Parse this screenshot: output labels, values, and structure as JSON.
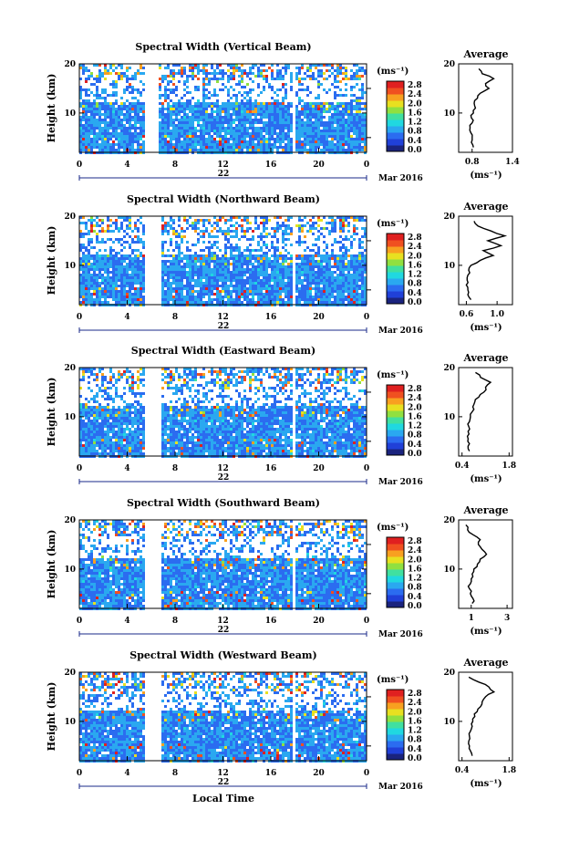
{
  "figure": {
    "month_label": "Mar 2016",
    "day_label": "22",
    "local_time_label": "Local Time"
  },
  "colorbar": {
    "unit": "(ms⁻¹)",
    "ticks": [
      "0.0",
      "0.4",
      "0.8",
      "1.2",
      "1.6",
      "2.0",
      "2.4",
      "2.8"
    ],
    "colors": [
      "#1a237e",
      "#2040d8",
      "#2b6cf0",
      "#2aa8f0",
      "#20d8e0",
      "#40e0a0",
      "#90e040",
      "#e8e020",
      "#f8a020",
      "#f05020",
      "#e02020"
    ]
  },
  "chart_data": [
    {
      "type": "heatmap",
      "title": "Spectral Width (Vertical Beam)",
      "xlabel": "",
      "ylabel": "Height (km)",
      "xlim": [
        0,
        24
      ],
      "ylim": [
        2,
        20
      ],
      "x_ticks": [
        "0",
        "4",
        "8",
        "12",
        "16",
        "20",
        "0"
      ],
      "y_ticks": [
        "10",
        "20"
      ],
      "zlim": [
        0.0,
        3.0
      ],
      "gaps": [
        [
          5.4,
          5.9
        ],
        [
          5.9,
          6.6
        ],
        [
          17.6,
          18.0
        ]
      ],
      "average": {
        "title": "Average",
        "xlabel": "(ms⁻¹)",
        "xlim": [
          0.6,
          1.4
        ],
        "x_ticks": [
          "0.8",
          "1.4"
        ],
        "y_ticks": [
          "10",
          "20"
        ],
        "height": [
          3,
          4,
          5,
          6,
          7,
          8,
          9,
          10,
          11,
          12,
          13,
          14,
          15,
          16,
          17,
          18,
          19
        ],
        "value": [
          0.82,
          0.79,
          0.8,
          0.78,
          0.77,
          0.8,
          0.79,
          0.82,
          0.85,
          0.83,
          0.88,
          0.92,
          1.05,
          1.0,
          1.12,
          0.95,
          0.9
        ]
      }
    },
    {
      "type": "heatmap",
      "title": "Spectral Width (Northward Beam)",
      "xlabel": "",
      "ylabel": "Height (km)",
      "xlim": [
        0,
        24
      ],
      "ylim": [
        2,
        20
      ],
      "x_ticks": [
        "0",
        "4",
        "8",
        "12",
        "16",
        "20",
        "0"
      ],
      "y_ticks": [
        "10",
        "20"
      ],
      "zlim": [
        0.0,
        3.0
      ],
      "gaps": [
        [
          5.4,
          6.8
        ],
        [
          17.6,
          18.0
        ]
      ],
      "average": {
        "title": "Average",
        "xlabel": "(ms⁻¹)",
        "xlim": [
          0.5,
          1.2
        ],
        "x_ticks": [
          "0.6",
          "1.0"
        ],
        "y_ticks": [
          "10",
          "20"
        ],
        "height": [
          3,
          4,
          5,
          6,
          7,
          8,
          9,
          10,
          11,
          12,
          13,
          14,
          15,
          16,
          17,
          18,
          19
        ],
        "value": [
          0.66,
          0.62,
          0.62,
          0.6,
          0.61,
          0.62,
          0.63,
          0.66,
          0.78,
          0.95,
          0.82,
          1.05,
          0.88,
          1.1,
          0.92,
          0.75,
          0.7
        ]
      }
    },
    {
      "type": "heatmap",
      "title": "Spectral Width (Eastward Beam)",
      "xlabel": "",
      "ylabel": "Height (km)",
      "xlim": [
        0,
        24
      ],
      "ylim": [
        2,
        20
      ],
      "x_ticks": [
        "0",
        "4",
        "8",
        "12",
        "16",
        "20",
        "0"
      ],
      "y_ticks": [
        "10",
        "20"
      ],
      "zlim": [
        0.0,
        3.0
      ],
      "gaps": [
        [
          5.4,
          6.8
        ],
        [
          17.6,
          18.0
        ]
      ],
      "average": {
        "title": "Average",
        "xlabel": "(ms⁻¹)",
        "xlim": [
          0.3,
          1.9
        ],
        "x_ticks": [
          "0.4",
          "1.8"
        ],
        "y_ticks": [
          "10",
          "20"
        ],
        "height": [
          3,
          4,
          5,
          6,
          7,
          8,
          9,
          10,
          11,
          12,
          13,
          14,
          15,
          16,
          17,
          18,
          19
        ],
        "value": [
          0.62,
          0.58,
          0.57,
          0.56,
          0.58,
          0.6,
          0.62,
          0.65,
          0.7,
          0.72,
          0.78,
          0.9,
          1.05,
          1.1,
          1.25,
          0.95,
          0.8
        ]
      }
    },
    {
      "type": "heatmap",
      "title": "Spectral Width (Southward Beam)",
      "xlabel": "",
      "ylabel": "Height (km)",
      "xlim": [
        0,
        24
      ],
      "ylim": [
        2,
        20
      ],
      "x_ticks": [
        "0",
        "4",
        "8",
        "12",
        "16",
        "20",
        "0"
      ],
      "y_ticks": [
        "10",
        "20"
      ],
      "zlim": [
        0.0,
        3.0
      ],
      "gaps": [
        [
          5.4,
          6.8
        ],
        [
          17.6,
          18.0
        ]
      ],
      "average": {
        "title": "Average",
        "xlabel": "(ms⁻¹)",
        "xlim": [
          0.3,
          3.3
        ],
        "x_ticks": [
          "1",
          "3"
        ],
        "y_ticks": [
          "10",
          "20"
        ],
        "height": [
          3,
          4,
          5,
          6,
          7,
          8,
          9,
          10,
          11,
          12,
          13,
          14,
          15,
          16,
          17,
          18,
          19
        ],
        "value": [
          1.05,
          1.1,
          0.95,
          0.9,
          0.95,
          1.0,
          1.05,
          1.15,
          1.35,
          1.5,
          1.85,
          1.6,
          1.4,
          1.5,
          1.1,
          0.8,
          0.7
        ]
      }
    },
    {
      "type": "heatmap",
      "title": "Spectral Width (Westward Beam)",
      "xlabel": "",
      "ylabel": "Height (km)",
      "xlim": [
        0,
        24
      ],
      "ylim": [
        2,
        20
      ],
      "x_ticks": [
        "0",
        "4",
        "8",
        "12",
        "16",
        "20",
        "0"
      ],
      "y_ticks": [
        "10",
        "20"
      ],
      "zlim": [
        0.0,
        3.0
      ],
      "gaps": [
        [
          5.4,
          6.8
        ],
        [
          17.6,
          18.0
        ]
      ],
      "average": {
        "title": "Average",
        "xlabel": "(ms⁻¹)",
        "xlim": [
          0.3,
          1.9
        ],
        "x_ticks": [
          "0.4",
          "1.8"
        ],
        "y_ticks": [
          "10",
          "20"
        ],
        "height": [
          3,
          4,
          5,
          6,
          7,
          8,
          9,
          10,
          11,
          12,
          13,
          14,
          15,
          16,
          17,
          18,
          19
        ],
        "value": [
          0.7,
          0.65,
          0.62,
          0.6,
          0.62,
          0.65,
          0.7,
          0.72,
          0.78,
          0.85,
          0.95,
          1.0,
          1.1,
          1.35,
          1.2,
          0.9,
          0.6
        ]
      }
    }
  ]
}
